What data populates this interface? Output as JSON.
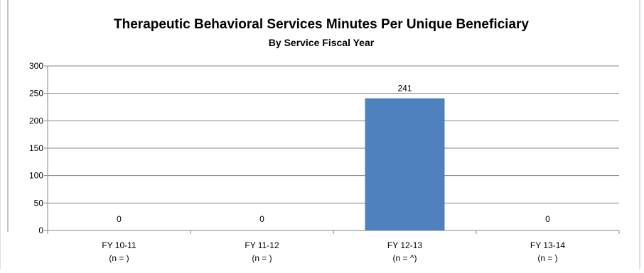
{
  "chart_data": {
    "type": "bar",
    "title": "Therapeutic Behavioral Services Minutes Per Unique Beneficiary",
    "subtitle": "By Service Fiscal Year",
    "categories": [
      "FY 10-11",
      "FY 11-12",
      "FY 12-13",
      "FY 13-14"
    ],
    "category_sublabels": [
      "(n = )",
      "(n = )",
      "(n = ^)",
      "(n = )"
    ],
    "values": [
      0,
      0,
      241,
      0
    ],
    "data_labels": [
      "0",
      "0",
      "241",
      "0"
    ],
    "ylim": [
      0,
      300
    ],
    "yticks": [
      0,
      50,
      100,
      150,
      200,
      250,
      300
    ],
    "grid": true,
    "legend": "none",
    "bar_color": "#4F81BD",
    "gridline_color": "#868686"
  }
}
